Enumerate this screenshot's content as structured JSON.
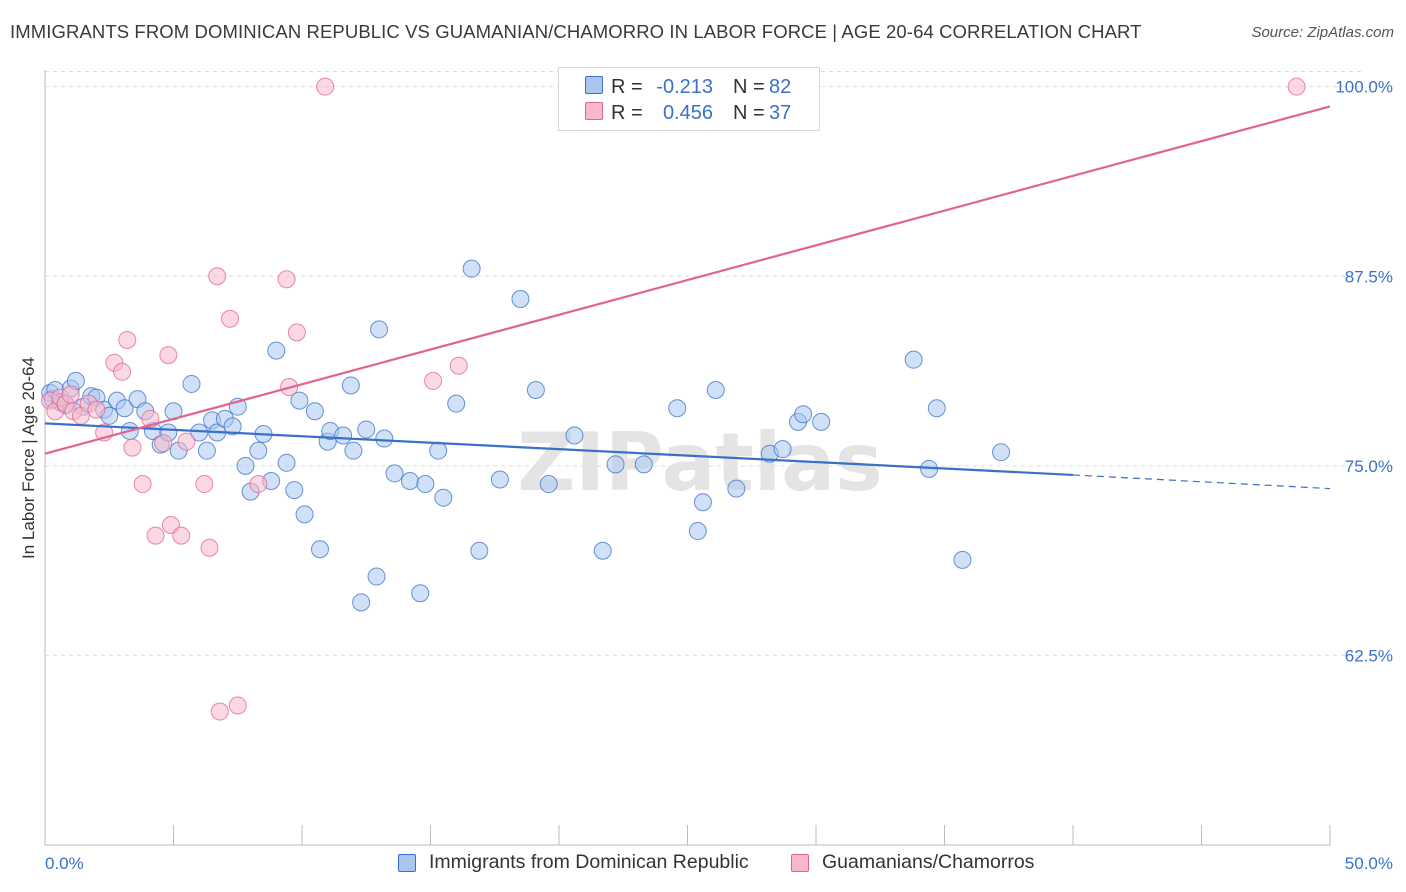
{
  "title": "IMMIGRANTS FROM DOMINICAN REPUBLIC VS GUAMANIAN/CHAMORRO IN LABOR FORCE | AGE 20-64 CORRELATION CHART",
  "source": "Source: ZipAtlas.com",
  "watermark": "ZIPatlas",
  "colors": {
    "blue": "#3a70c8",
    "blue_fill": "#a9c6ee",
    "pink": "#e0648e",
    "pink_fill": "#f7b8cc",
    "grid": "#dddddd"
  },
  "legend": {
    "rows": [
      {
        "r_label": "R =",
        "r_value": "-0.213",
        "n_label": "N =",
        "n_value": "82"
      },
      {
        "r_label": "R =",
        "r_value": "0.456",
        "n_label": "N =",
        "n_value": "37"
      }
    ]
  },
  "bottom_legend": [
    "Immigrants from Dominican Republic",
    "Guamanians/Chamorros"
  ],
  "chart_data": {
    "type": "scatter",
    "title": "IMMIGRANTS FROM DOMINICAN REPUBLIC VS GUAMANIAN/CHAMORRO IN LABOR FORCE | AGE 20-64 CORRELATION CHART",
    "xlabel": "",
    "ylabel": "In Labor Force | Age 20-64",
    "xlim": [
      0,
      50
    ],
    "ylim": [
      50,
      101.1
    ],
    "x_tick_labels": [
      "0.0%",
      "50.0%"
    ],
    "y_ticks": [
      62.5,
      75.0,
      87.5,
      100.0
    ],
    "y_tick_labels": [
      "62.5%",
      "75.0%",
      "87.5%",
      "100.0%"
    ],
    "grid": "horizontal dashed",
    "legend_position": "top-center",
    "series": [
      {
        "name": "Immigrants from Dominican Republic",
        "color": "#3a70c8",
        "r": -0.213,
        "n": 82,
        "trend": {
          "x": [
            0,
            40
          ],
          "y": [
            77.8,
            74.4
          ],
          "dashed_to": [
            50,
            73.5
          ]
        },
        "points": [
          [
            0.2,
            79.8
          ],
          [
            0.3,
            79.4
          ],
          [
            0.4,
            80.0
          ],
          [
            0.6,
            79.2
          ],
          [
            0.8,
            79.0
          ],
          [
            1.0,
            80.1
          ],
          [
            1.2,
            80.6
          ],
          [
            1.5,
            78.9
          ],
          [
            1.8,
            79.6
          ],
          [
            2.0,
            79.5
          ],
          [
            2.3,
            78.7
          ],
          [
            2.5,
            78.3
          ],
          [
            2.8,
            79.3
          ],
          [
            3.1,
            78.8
          ],
          [
            3.3,
            77.3
          ],
          [
            3.6,
            79.4
          ],
          [
            3.9,
            78.6
          ],
          [
            4.2,
            77.3
          ],
          [
            4.5,
            76.4
          ],
          [
            4.8,
            77.2
          ],
          [
            5.0,
            78.6
          ],
          [
            5.2,
            76.0
          ],
          [
            5.7,
            80.4
          ],
          [
            6.0,
            77.2
          ],
          [
            6.3,
            76.0
          ],
          [
            6.5,
            78.0
          ],
          [
            6.7,
            77.2
          ],
          [
            7.0,
            78.1
          ],
          [
            7.3,
            77.6
          ],
          [
            7.5,
            78.9
          ],
          [
            7.8,
            75.0
          ],
          [
            8.0,
            73.3
          ],
          [
            8.3,
            76.0
          ],
          [
            8.5,
            77.1
          ],
          [
            8.8,
            74.0
          ],
          [
            9.0,
            82.6
          ],
          [
            9.4,
            75.2
          ],
          [
            9.7,
            73.4
          ],
          [
            9.9,
            79.3
          ],
          [
            10.1,
            71.8
          ],
          [
            10.5,
            78.6
          ],
          [
            10.7,
            69.5
          ],
          [
            11.0,
            76.6
          ],
          [
            11.1,
            77.3
          ],
          [
            11.6,
            77.0
          ],
          [
            11.9,
            80.3
          ],
          [
            12.0,
            76.0
          ],
          [
            12.3,
            66.0
          ],
          [
            12.5,
            77.4
          ],
          [
            12.9,
            67.7
          ],
          [
            13.0,
            84.0
          ],
          [
            13.2,
            76.8
          ],
          [
            13.6,
            74.5
          ],
          [
            14.2,
            74.0
          ],
          [
            14.6,
            66.6
          ],
          [
            14.8,
            73.8
          ],
          [
            15.3,
            76.0
          ],
          [
            15.5,
            72.9
          ],
          [
            16.0,
            79.1
          ],
          [
            16.6,
            88.0
          ],
          [
            16.9,
            69.4
          ],
          [
            17.7,
            74.1
          ],
          [
            18.5,
            86.0
          ],
          [
            19.1,
            80.0
          ],
          [
            19.6,
            73.8
          ],
          [
            20.6,
            77.0
          ],
          [
            21.7,
            69.4
          ],
          [
            22.2,
            75.1
          ],
          [
            23.3,
            75.1
          ],
          [
            24.6,
            78.8
          ],
          [
            25.4,
            70.7
          ],
          [
            25.6,
            72.6
          ],
          [
            26.1,
            80.0
          ],
          [
            26.9,
            73.5
          ],
          [
            28.2,
            75.8
          ],
          [
            28.7,
            76.1
          ],
          [
            29.3,
            77.9
          ],
          [
            29.5,
            78.4
          ],
          [
            30.2,
            77.9
          ],
          [
            33.8,
            82.0
          ],
          [
            34.4,
            74.8
          ],
          [
            34.7,
            78.8
          ],
          [
            37.2,
            75.9
          ],
          [
            35.7,
            68.8
          ]
        ]
      },
      {
        "name": "Guamanians/Chamorros",
        "color": "#e0648e",
        "r": 0.456,
        "n": 37,
        "trend": {
          "x": [
            0,
            50
          ],
          "y": [
            75.8,
            98.7
          ]
        },
        "points": [
          [
            0.2,
            79.3
          ],
          [
            0.4,
            78.6
          ],
          [
            0.6,
            79.5
          ],
          [
            0.8,
            79.1
          ],
          [
            1.0,
            79.7
          ],
          [
            1.1,
            78.6
          ],
          [
            1.4,
            78.3
          ],
          [
            1.7,
            79.1
          ],
          [
            2.0,
            78.7
          ],
          [
            2.3,
            77.2
          ],
          [
            2.7,
            81.8
          ],
          [
            3.0,
            81.2
          ],
          [
            3.2,
            83.3
          ],
          [
            3.4,
            76.2
          ],
          [
            3.8,
            73.8
          ],
          [
            4.1,
            78.1
          ],
          [
            4.3,
            70.4
          ],
          [
            4.6,
            76.5
          ],
          [
            4.8,
            82.3
          ],
          [
            4.9,
            71.1
          ],
          [
            5.3,
            70.4
          ],
          [
            5.5,
            76.6
          ],
          [
            6.2,
            73.8
          ],
          [
            6.4,
            69.6
          ],
          [
            6.7,
            87.5
          ],
          [
            6.8,
            58.8
          ],
          [
            7.2,
            84.7
          ],
          [
            7.5,
            59.2
          ],
          [
            8.3,
            73.8
          ],
          [
            9.4,
            87.3
          ],
          [
            9.5,
            80.2
          ],
          [
            9.8,
            83.8
          ],
          [
            10.9,
            100.0
          ],
          [
            15.1,
            80.6
          ],
          [
            16.1,
            81.6
          ],
          [
            48.7,
            100.0
          ]
        ]
      }
    ]
  }
}
